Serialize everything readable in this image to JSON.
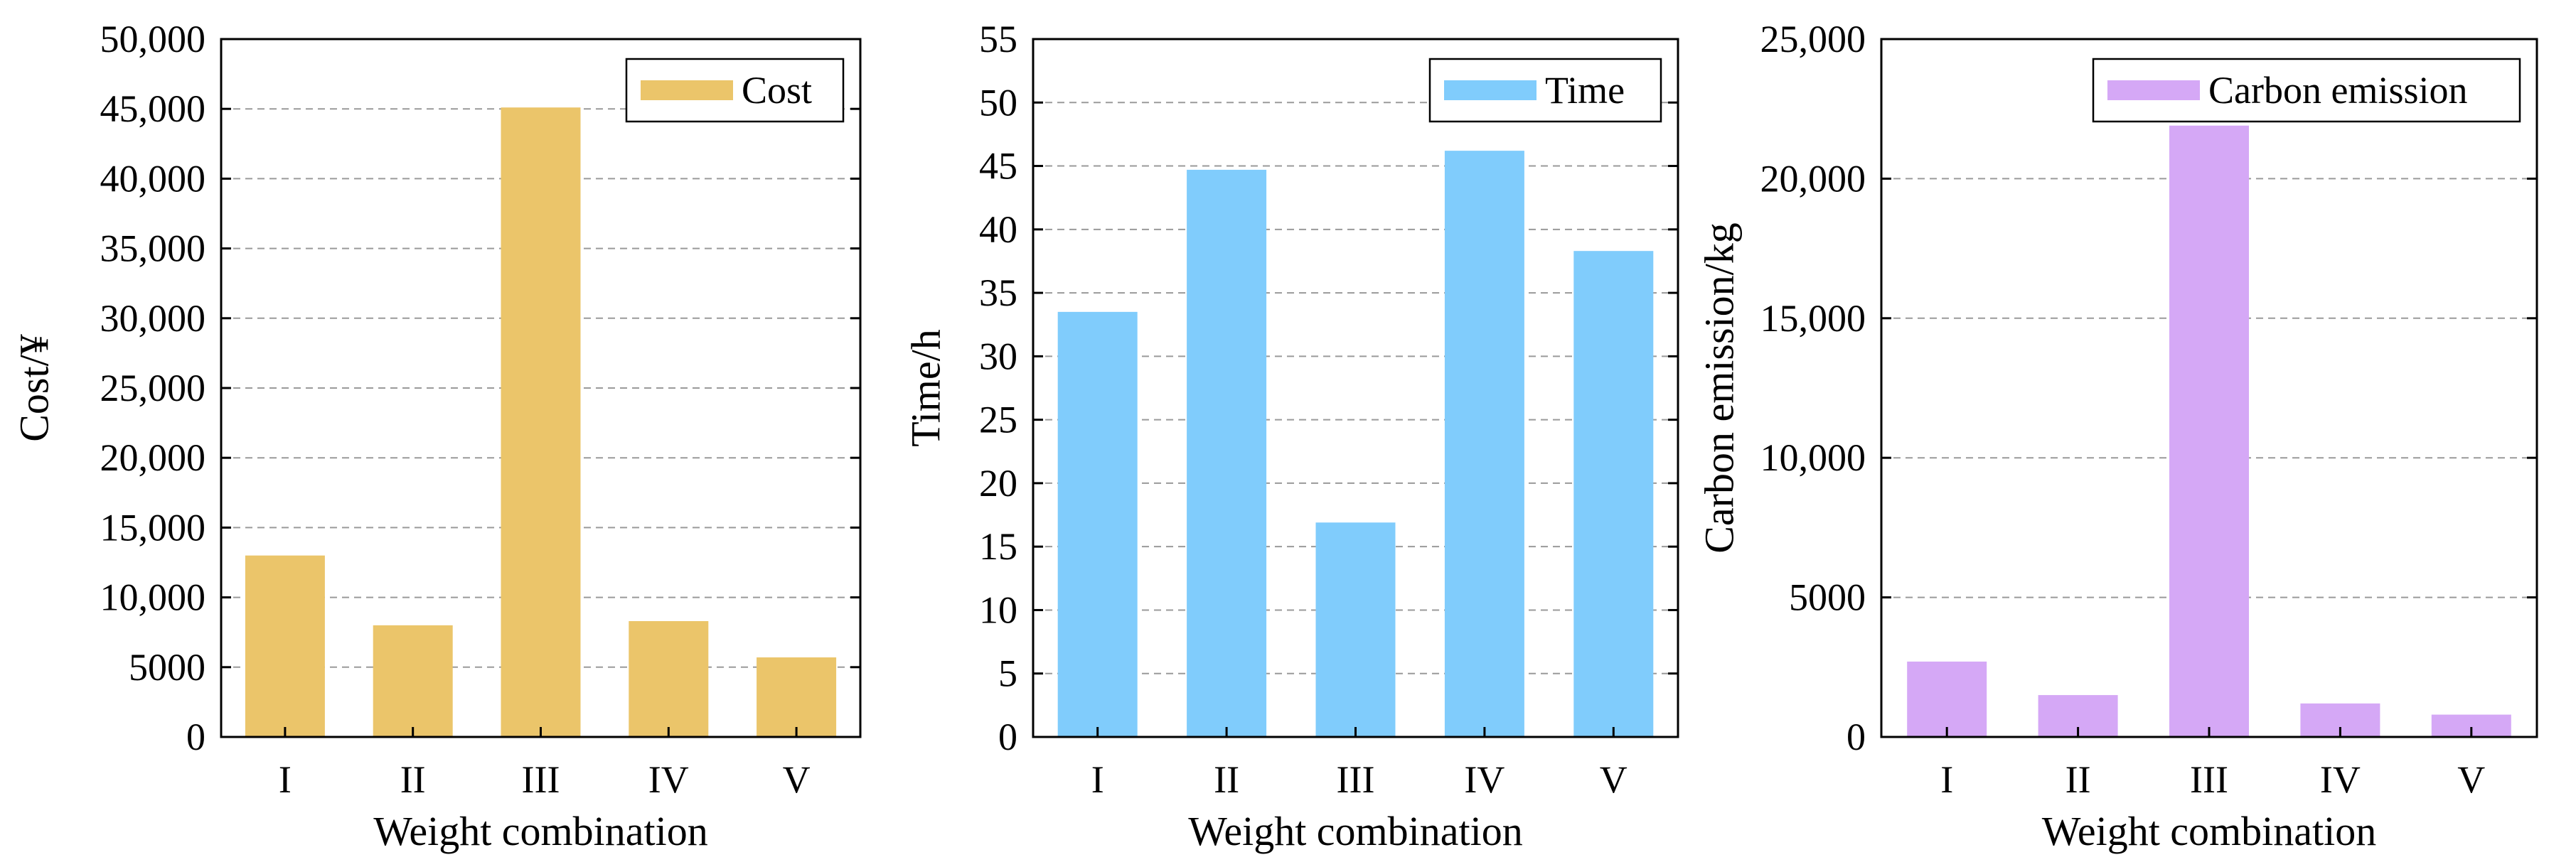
{
  "chart_data": [
    {
      "type": "bar",
      "title": "",
      "xlabel": "Weight combination",
      "ylabel": "Cost/¥",
      "categories": [
        "I",
        "II",
        "III",
        "IV",
        "V"
      ],
      "series": [
        {
          "name": "Cost",
          "values": [
            13000,
            8000,
            45100,
            8300,
            5700
          ]
        }
      ],
      "ylim": [
        0,
        50000
      ],
      "yticks": [
        0,
        5000,
        10000,
        15000,
        20000,
        25000,
        30000,
        35000,
        40000,
        45000,
        50000
      ],
      "ytick_labels": [
        "0",
        "5000",
        "10,000",
        "15,000",
        "20,000",
        "25,000",
        "30,000",
        "35,000",
        "40,000",
        "45,000",
        "50,000"
      ],
      "color": "#ebc56a",
      "grid": "horizontal dashed",
      "legend_position": "top-right"
    },
    {
      "type": "bar",
      "title": "",
      "xlabel": "Weight combination",
      "ylabel": "Time/h",
      "categories": [
        "I",
        "II",
        "III",
        "IV",
        "V"
      ],
      "series": [
        {
          "name": "Time",
          "values": [
            33.5,
            44.7,
            16.9,
            46.2,
            38.3
          ]
        }
      ],
      "ylim": [
        0,
        55
      ],
      "yticks": [
        0,
        5,
        10,
        15,
        20,
        25,
        30,
        35,
        40,
        45,
        50,
        55
      ],
      "ytick_labels": [
        "0",
        "5",
        "10",
        "15",
        "20",
        "25",
        "30",
        "35",
        "40",
        "45",
        "50",
        "55"
      ],
      "color": "#80ccfc",
      "grid": "horizontal dashed",
      "legend_position": "top-right"
    },
    {
      "type": "bar",
      "title": "",
      "xlabel": "Weight combination",
      "ylabel": "Carbon emission/kg",
      "categories": [
        "I",
        "II",
        "III",
        "IV",
        "V"
      ],
      "series": [
        {
          "name": "Carbon emission",
          "values": [
            2700,
            1500,
            21900,
            1200,
            800
          ]
        }
      ],
      "ylim": [
        0,
        25000
      ],
      "yticks": [
        0,
        5000,
        10000,
        15000,
        20000,
        25000
      ],
      "ytick_labels": [
        "0",
        "5000",
        "10,000",
        "15,000",
        "20,000",
        "25,000"
      ],
      "color": "#d5a8f6",
      "grid": "horizontal dashed",
      "legend_position": "top-right"
    }
  ]
}
